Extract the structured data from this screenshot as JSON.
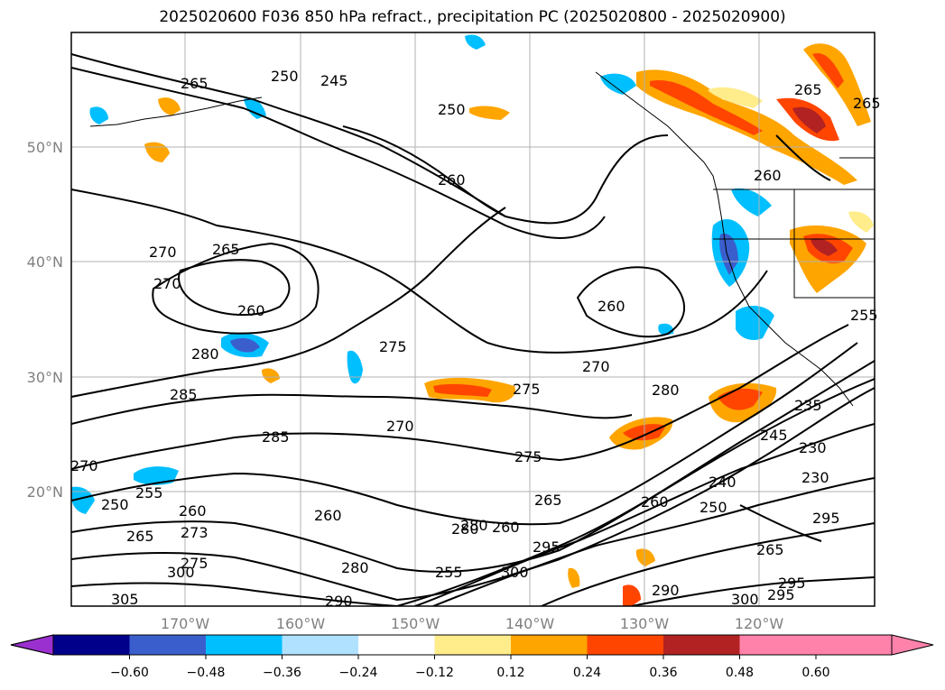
{
  "title": "2025020600 F036 850 hPa refract., precipitation PC (2025020800 - 2025020900)",
  "map": {
    "lat_labels": [
      "50°N",
      "40°N",
      "30°N",
      "20°N"
    ],
    "lon_labels": [
      "170°W",
      "160°W",
      "150°W",
      "140°W",
      "130°W",
      "120°W"
    ],
    "contour_labels": [
      "265",
      "250",
      "245",
      "250",
      "260",
      "265",
      "265",
      "270",
      "260",
      "280",
      "275",
      "285",
      "270",
      "285",
      "275",
      "270",
      "260",
      "280",
      "275",
      "265",
      "270",
      "280",
      "255",
      "260",
      "250",
      "265",
      "273",
      "260",
      "275",
      "280",
      "300",
      "305",
      "295",
      "280",
      "255",
      "300",
      "295",
      "290",
      "265",
      "260",
      "245",
      "235",
      "230",
      "230",
      "240",
      "250",
      "255",
      "260",
      "265",
      "270",
      "290",
      "295",
      "300",
      "295",
      "260"
    ],
    "contour_label_positions_note": ""
  },
  "colorbar": {
    "colors": [
      "#9b30d0",
      "#00008b",
      "#3a5fcd",
      "#00bfff",
      "#b0e2ff",
      "#ffffff",
      "#ffec8b",
      "#ffa500",
      "#ff4500",
      "#b22222",
      "#ff82ab"
    ],
    "ticks": [
      "−0.60",
      "−0.48",
      "−0.36",
      "−0.24",
      "−0.12",
      "0.12",
      "0.24",
      "0.36",
      "0.48",
      "0.60"
    ]
  }
}
